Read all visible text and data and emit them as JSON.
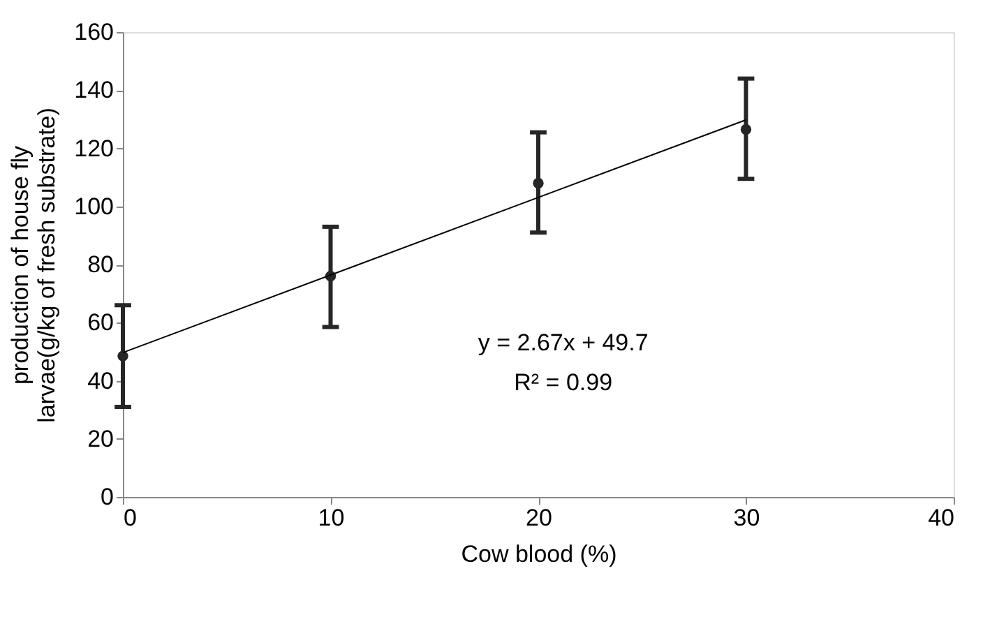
{
  "chart_data": {
    "type": "scatter",
    "xlabel": "Cow blood (%)",
    "ylabel": "production of house fly\nlarvae(g/kg of fresh substrate)",
    "xlim": [
      0,
      40
    ],
    "xticks": [
      0,
      10,
      20,
      30,
      40
    ],
    "ylim": [
      0,
      160
    ],
    "yticks": [
      0,
      20,
      40,
      60,
      80,
      100,
      120,
      140,
      160
    ],
    "grid": false,
    "marker": "circle",
    "series": [
      {
        "color": "#262626",
        "x": [
          0,
          10,
          20,
          30
        ],
        "values": [
          48.5,
          76,
          108,
          126.5
        ],
        "errors": [
          [
            31,
            66
          ],
          [
            58.5,
            93
          ],
          [
            91,
            125.5
          ],
          [
            109.5,
            144
          ]
        ]
      },
      {
        "type": "line",
        "color": "#000000",
        "x": [
          0,
          30
        ],
        "values": [
          49.7,
          129.8
        ],
        "line_style": "solid",
        "marker": "none"
      }
    ],
    "annotations": [
      "y = 2.67x + 49.7",
      "R² = 0.99"
    ]
  }
}
